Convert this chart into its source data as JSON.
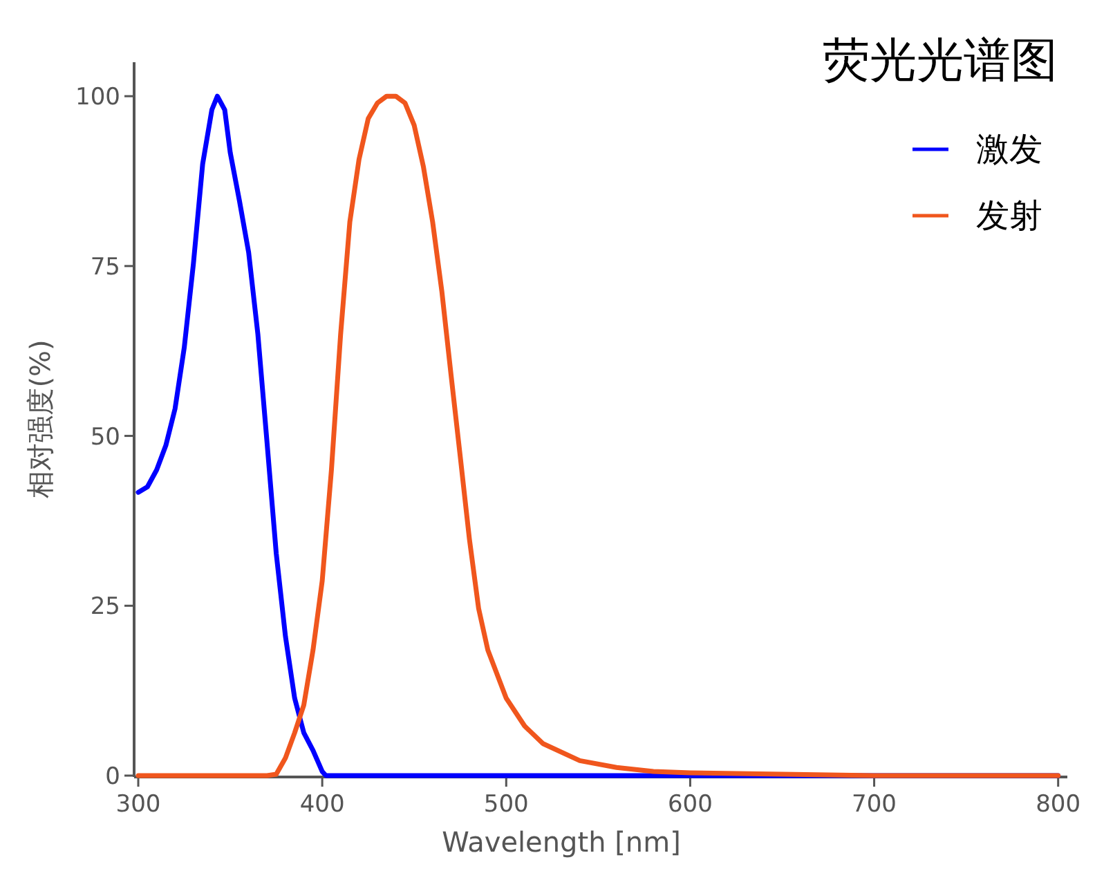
{
  "chart_data": {
    "type": "line",
    "title": "荧光光谱图",
    "xlabel": "Wavelength [nm]",
    "ylabel": "相对强度(%)",
    "xlim": [
      300,
      805
    ],
    "xticks": [
      300,
      400,
      500,
      600,
      700,
      800
    ],
    "ylim": [
      0,
      105
    ],
    "yticks": [
      0,
      25,
      50,
      75,
      100
    ],
    "grid": false,
    "legend": "top right",
    "marker": "none",
    "line_style": "solid",
    "series": [
      {
        "name": "激发",
        "color": "#0000ff",
        "x": [
          300,
          305,
          310,
          315,
          320,
          325,
          330,
          335,
          340,
          343,
          347,
          350,
          355,
          360,
          365,
          370,
          375,
          380,
          385,
          390,
          395,
          400,
          402,
          500,
          600,
          700,
          800
        ],
        "values": [
          41.7,
          42.5,
          45,
          48.6,
          54,
          63,
          75.4,
          90,
          98,
          100,
          98,
          91.7,
          84.6,
          77,
          65,
          49,
          32.7,
          20.5,
          11.4,
          6.3,
          3.7,
          0.6,
          0,
          0,
          0,
          0,
          0
        ]
      },
      {
        "name": "发射",
        "color": "#f0561d",
        "x": [
          300,
          370,
          375,
          380,
          385,
          390,
          395,
          400,
          405,
          410,
          415,
          420,
          425,
          430,
          435,
          440,
          445,
          450,
          455,
          460,
          465,
          470,
          475,
          480,
          485,
          490,
          500,
          510,
          520,
          540,
          560,
          580,
          600,
          700,
          800
        ],
        "values": [
          0,
          0,
          0.2,
          2.6,
          6.3,
          10.4,
          18.5,
          28.7,
          45,
          65,
          81.5,
          90.7,
          96.7,
          99,
          100,
          100,
          99,
          95.7,
          89.6,
          81.5,
          71.3,
          59,
          47,
          34.8,
          24.6,
          18.5,
          11.4,
          7.3,
          4.7,
          2.2,
          1.2,
          0.6,
          0.4,
          0,
          0
        ]
      }
    ]
  }
}
